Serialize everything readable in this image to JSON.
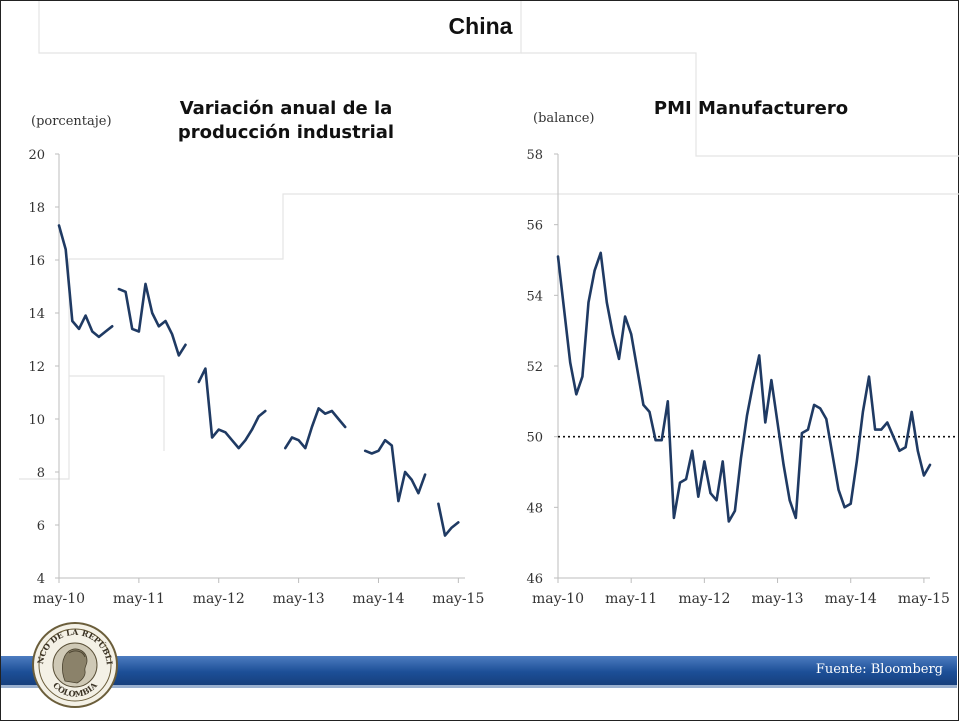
{
  "slide": {
    "title": "China"
  },
  "source": "Fuente: Bloomberg",
  "logo": {
    "text_top": "BANCO DE LA REPÚBLICA",
    "text_bottom": "COLOMBIA"
  },
  "colors": {
    "line": "#1f3a63",
    "banner": "#1c4f97",
    "reference_line": "#111111"
  },
  "chart_data": [
    {
      "type": "line",
      "title": "Variación anual de la producción industrial",
      "title_lines": [
        "Variación anual de la",
        "producción industrial"
      ],
      "ylabel": "(porcentaje)",
      "ylim": [
        4,
        20
      ],
      "yticks": [
        4,
        6,
        8,
        10,
        12,
        14,
        16,
        18,
        20
      ],
      "xlim": [
        0,
        61
      ],
      "xtick_positions": [
        0,
        12,
        24,
        36,
        48,
        60
      ],
      "xtick_labels": [
        "may-10",
        "may-11",
        "may-12",
        "may-13",
        "may-14",
        "may-15"
      ],
      "x_unit": "months since may-10",
      "segments": [
        [
          [
            0,
            17.3
          ],
          [
            1,
            16.4
          ],
          [
            2,
            13.7
          ],
          [
            3,
            13.4
          ],
          [
            4,
            13.9
          ],
          [
            5,
            13.3
          ],
          [
            6,
            13.1
          ],
          [
            7,
            13.3
          ],
          [
            8,
            13.5
          ]
        ],
        [
          [
            9,
            14.9
          ],
          [
            10,
            14.8
          ],
          [
            11,
            13.4
          ],
          [
            12,
            13.3
          ],
          [
            13,
            15.1
          ],
          [
            14,
            14.0
          ],
          [
            15,
            13.5
          ],
          [
            16,
            13.7
          ],
          [
            17,
            13.2
          ],
          [
            18,
            12.4
          ],
          [
            19,
            12.8
          ]
        ],
        [
          [
            21,
            11.4
          ],
          [
            22,
            11.9
          ],
          [
            23,
            9.3
          ],
          [
            24,
            9.6
          ],
          [
            25,
            9.5
          ],
          [
            26,
            9.2
          ],
          [
            27,
            8.9
          ],
          [
            28,
            9.2
          ],
          [
            29,
            9.6
          ],
          [
            30,
            10.1
          ],
          [
            31,
            10.3
          ]
        ],
        [
          [
            34,
            8.9
          ],
          [
            35,
            9.3
          ],
          [
            36,
            9.2
          ],
          [
            37,
            8.9
          ],
          [
            38,
            9.7
          ],
          [
            39,
            10.4
          ],
          [
            40,
            10.2
          ],
          [
            41,
            10.3
          ],
          [
            42,
            10.0
          ],
          [
            43,
            9.7
          ]
        ],
        [
          [
            46,
            8.8
          ],
          [
            47,
            8.7
          ],
          [
            48,
            8.8
          ],
          [
            49,
            9.2
          ],
          [
            50,
            9.0
          ],
          [
            51,
            6.9
          ],
          [
            52,
            8.0
          ],
          [
            53,
            7.7
          ],
          [
            54,
            7.2
          ],
          [
            55,
            7.9
          ]
        ],
        [
          [
            57,
            6.8
          ],
          [
            58,
            5.6
          ],
          [
            59,
            5.9
          ],
          [
            60,
            6.1
          ]
        ]
      ]
    },
    {
      "type": "line",
      "title": "PMI Manufacturero",
      "ylabel": "(balance)",
      "ylim": [
        46,
        58
      ],
      "yticks": [
        46,
        48,
        50,
        52,
        54,
        56,
        58
      ],
      "xlim": [
        0,
        61
      ],
      "xtick_positions": [
        0,
        12,
        24,
        36,
        48,
        60
      ],
      "xtick_labels": [
        "may-10",
        "may-11",
        "may-12",
        "may-13",
        "may-14",
        "may-15"
      ],
      "x_unit": "months since may-10",
      "reference_line": 50,
      "values": [
        55.1,
        53.6,
        52.1,
        51.2,
        51.7,
        53.8,
        54.7,
        55.2,
        53.8,
        52.9,
        52.2,
        53.4,
        52.9,
        51.9,
        50.9,
        50.7,
        49.9,
        49.9,
        51.0,
        47.7,
        48.7,
        48.8,
        49.6,
        48.3,
        49.3,
        48.4,
        48.2,
        49.3,
        47.6,
        47.9,
        49.4,
        50.6,
        51.5,
        52.3,
        50.4,
        51.6,
        50.4,
        49.2,
        48.2,
        47.7,
        50.1,
        50.2,
        50.9,
        50.8,
        50.5,
        49.5,
        48.5,
        48.0,
        48.1,
        49.3,
        50.7,
        51.7,
        50.2,
        50.2,
        50.4,
        50.0,
        49.6,
        49.7,
        50.7,
        49.6,
        48.9,
        49.2
      ]
    }
  ]
}
